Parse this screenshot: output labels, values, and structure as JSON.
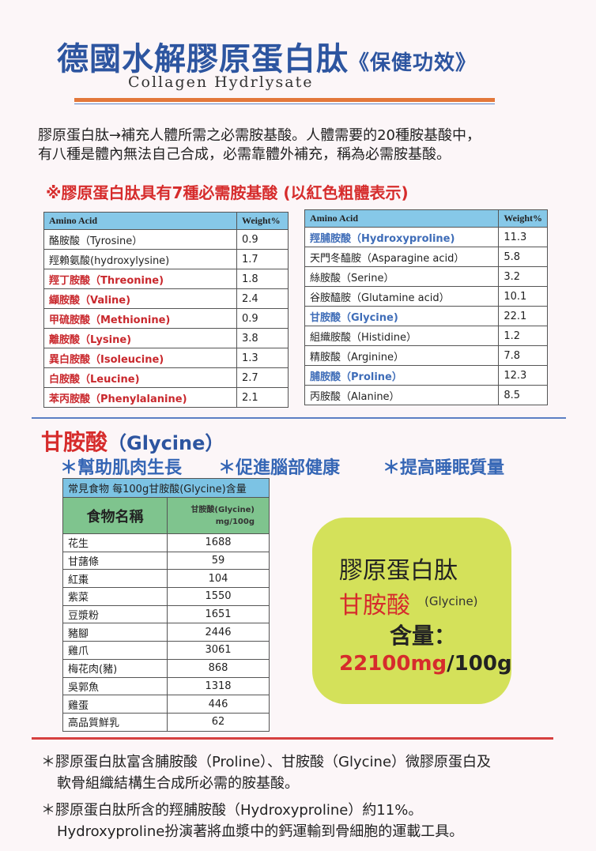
{
  "header": {
    "title": "德國水解膠原蛋白肽",
    "title_suffix": "《保健功效》",
    "subtitle": "Collagen Hydrlysate"
  },
  "intro": {
    "line1": "膠原蛋白肽→補充人體所需之必需胺基酸。人體需要的20種胺基酸中，",
    "line2": "有八種是體內無法自己合成，必需靠體外補充，稱為必需胺基酸。"
  },
  "note": "※膠原蛋白肽具有7種必需胺基酸 (以紅色粗體表示)",
  "amino_table": {
    "headers": [
      "Amino Acid",
      "Weight%"
    ],
    "left": [
      {
        "name": "酪胺酸（Tyrosine）",
        "weight": "0.9",
        "style": "normal"
      },
      {
        "name": "羥賴氨酸(hydroxylysine)",
        "weight": "1.7",
        "style": "normal"
      },
      {
        "name": "羥丁胺酸（Threonine)",
        "weight": "1.8",
        "style": "red"
      },
      {
        "name": "纈胺酸（Valine)",
        "weight": "2.4",
        "style": "red"
      },
      {
        "name": "甲硫胺酸（Methionine)",
        "weight": "0.9",
        "style": "red"
      },
      {
        "name": "離胺酸（Lysine)",
        "weight": "3.8",
        "style": "red"
      },
      {
        "name": "異白胺酸（Isoleucine)",
        "weight": "1.3",
        "style": "red"
      },
      {
        "name": "白胺酸（Leucine)",
        "weight": "2.7",
        "style": "red"
      },
      {
        "name": "苯丙胺酸（Phenylalanine)",
        "weight": "2.1",
        "style": "red"
      }
    ],
    "right": [
      {
        "name": "羥脯胺酸（Hydroxyproline)",
        "weight": "11.3",
        "style": "blue"
      },
      {
        "name": "天門冬醯胺（Asparagine acid）",
        "weight": "5.8",
        "style": "normal"
      },
      {
        "name": "絲胺酸（Serine）",
        "weight": "3.2",
        "style": "normal"
      },
      {
        "name": "谷胺醯胺（Glutamine acid）",
        "weight": "10.1",
        "style": "normal"
      },
      {
        "name": "甘胺酸（Glycine)",
        "weight": "22.1",
        "style": "blue"
      },
      {
        "name": "組織胺酸（Histidine）",
        "weight": "1.2",
        "style": "normal"
      },
      {
        "name": "精胺酸（Arginine）",
        "weight": "7.8",
        "style": "normal"
      },
      {
        "name": "脯胺酸（Proline）",
        "weight": "12.3",
        "style": "blue"
      },
      {
        "name": "丙胺酸（Alanine）",
        "weight": "8.5",
        "style": "normal"
      }
    ]
  },
  "glycine": {
    "title_cn": "甘胺酸",
    "title_en": "（Glycine）",
    "benefits": [
      "＊幫助肌肉生長",
      "＊促進腦部健康",
      "＊提高睡眠質量"
    ]
  },
  "food_table": {
    "caption": "常見食物  每100g甘胺酸(Glycine)含量",
    "header_name": "食物名稱",
    "header_value_1": "甘胺酸(Glycine)",
    "header_value_2": "mg/100g",
    "rows": [
      {
        "food": "花生",
        "value": "1688"
      },
      {
        "food": "甘藷條",
        "value": "59"
      },
      {
        "food": "紅棗",
        "value": "104"
      },
      {
        "food": "紫菜",
        "value": "1550"
      },
      {
        "food": "豆漿粉",
        "value": "1651"
      },
      {
        "food": "豬腳",
        "value": "2446"
      },
      {
        "food": "雞爪",
        "value": "3061"
      },
      {
        "food": "梅花肉(豬)",
        "value": "868"
      },
      {
        "food": "吳郭魚",
        "value": "1318"
      },
      {
        "food": "雞蛋",
        "value": "446"
      },
      {
        "food": "高品質鮮乳",
        "value": "62"
      }
    ]
  },
  "highlight": {
    "line1": "膠原蛋白肽",
    "line2_cn": "甘胺酸",
    "line2_en": "(Glycine)",
    "line3": "含量：",
    "amount": "22100mg",
    "unit": "/100g",
    "bg": "#d4e15a"
  },
  "footer": {
    "note1_line1": "＊膠原蛋白肽富含脯胺酸（Proline）、甘胺酸（Glycine）微膠原蛋白及",
    "note1_line2": "軟骨組織結構生合成所必需的胺基酸。",
    "note2_line1": "＊膠原蛋白肽所含的羥脯胺酸（Hydroxyproline）約11%。",
    "note2_line2": "Hydroxyproline扮演著將血漿中的鈣運輸到骨細胞的運載工具。"
  }
}
